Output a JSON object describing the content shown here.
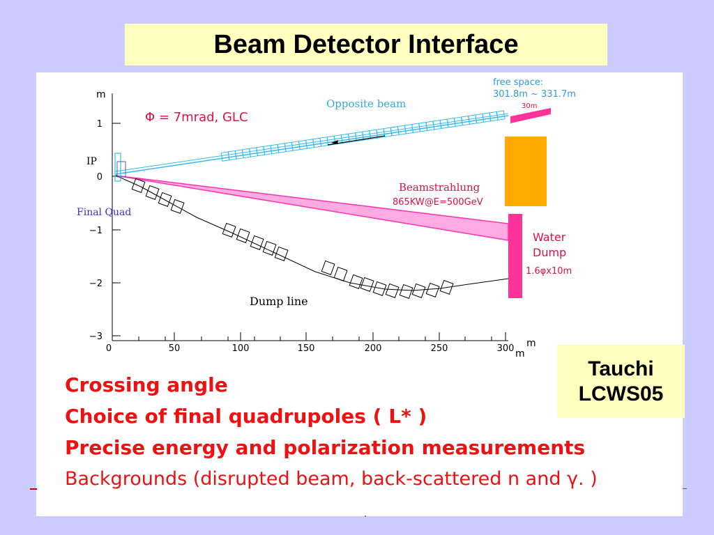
{
  "slide": {
    "title": "Beam Detector Interface"
  },
  "diagram": {
    "axis_unit_y": "m",
    "axis_unit_x": "m",
    "axis_unit_x2": "m",
    "y_ticks": [
      "1",
      "0",
      "−1",
      "−2",
      "−3"
    ],
    "x_ticks": [
      "0",
      "50",
      "100",
      "150",
      "200",
      "250",
      "300"
    ],
    "ip_label": "IP",
    "final_quad_label": "Final Quad",
    "crossing_label": "Φ = 7mrad, GLC",
    "opposite_beam_label": "Opposite beam",
    "free_space_line1": "free space:",
    "free_space_line2": "301.8m ~ 331.7m",
    "length_30m": "30m",
    "beamstrahlung_label": "Beamstrahlung",
    "beamstrahlung_power": "865KW@E=500GeV",
    "water_dump_line1": "Water",
    "water_dump_line2": "Dump",
    "water_dump_size": "1.6φx10m",
    "dump_line_label": "Dump line"
  },
  "credit": {
    "name": "Tauchi",
    "event": "LCWS05"
  },
  "bullets": [
    "Crossing angle",
    "Choice of final quadrupoles (  L* )",
    "Precise energy and polarization measurements",
    "Backgrounds (disrupted beam, back-scattered n and γ. )"
  ],
  "colors": {
    "background": "#ccccff",
    "title_box": "#ffffc0",
    "bullet_text": "#ee1111",
    "opposite_beam": "#33bbee",
    "beamstrahlung": "#ff66cc",
    "dump_block": "#ffaa00",
    "water_dump": "#ff3399",
    "label_blue": "#3333cc",
    "label_red": "#dd1144"
  }
}
